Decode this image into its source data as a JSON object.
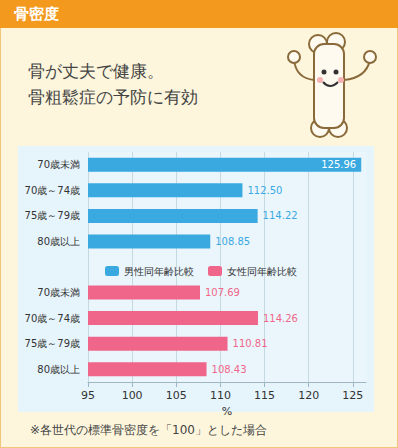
{
  "chart_data": {
    "type": "bar",
    "title": "骨密度",
    "subtitle": "骨が丈夫で健康。\n骨粗鬆症の予防に有効",
    "footnote": "※各世代の標準骨密度を「100」とした場合",
    "orientation": "horizontal",
    "categories": [
      "70歳未満",
      "70歳～74歳",
      "75歳～79歳",
      "80歳以上",
      null,
      "70歳未満",
      "70歳～74歳",
      "75歳～79歳",
      "80歳以上"
    ],
    "series": [
      {
        "name": "男性同年齢比較",
        "color": "#3aa9df",
        "values": [
          125.96,
          112.5,
          114.22,
          108.85,
          null,
          null,
          null,
          null,
          null
        ],
        "value_labels": [
          "125.96",
          "112.50",
          "114.22",
          "108.85",
          null,
          null,
          null,
          null,
          null
        ]
      },
      {
        "name": "女性同年齢比較",
        "color": "#f0668a",
        "values": [
          null,
          null,
          null,
          null,
          null,
          107.69,
          114.26,
          110.81,
          108.43
        ],
        "value_labels": [
          null,
          null,
          null,
          null,
          null,
          "107.69",
          "114.26",
          "110.81",
          "108.43"
        ]
      }
    ],
    "xlabel": "%",
    "xlim": [
      95,
      126.5
    ],
    "xticks": [
      95,
      100,
      105,
      110,
      115,
      120,
      125
    ],
    "grid": true,
    "legend": "middle",
    "data_labels": true
  }
}
